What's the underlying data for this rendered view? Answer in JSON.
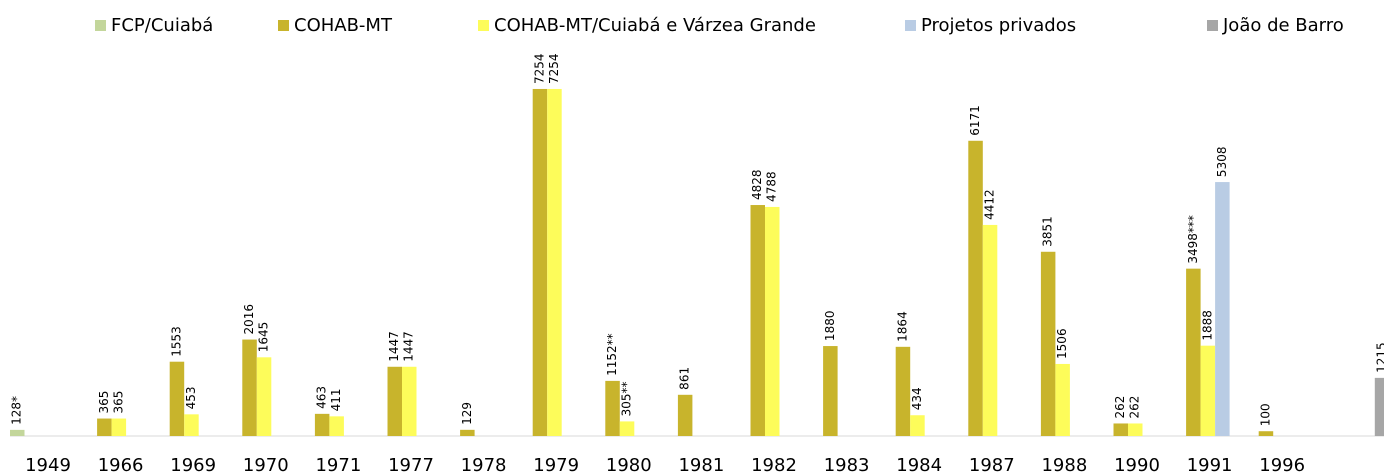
{
  "chart_data": {
    "type": "bar",
    "categories": [
      "1949",
      "1966",
      "1969",
      "1970",
      "1971",
      "1977",
      "1978",
      "1979",
      "1980",
      "1981",
      "1982",
      "1983",
      "1984",
      "1987",
      "1988",
      "1990",
      "1991",
      "1996",
      null
    ],
    "ylim": [
      0,
      8000
    ],
    "series": [
      {
        "name": "FCP/Cuiabá",
        "color": "#c3d69b",
        "values": [
          128,
          null,
          null,
          null,
          null,
          null,
          null,
          null,
          null,
          null,
          null,
          null,
          null,
          null,
          null,
          null,
          null,
          null,
          null
        ],
        "value_labels": [
          "128*",
          null,
          null,
          null,
          null,
          null,
          null,
          null,
          null,
          null,
          null,
          null,
          null,
          null,
          null,
          null,
          null,
          null,
          null
        ]
      },
      {
        "name": "COHAB-MT",
        "color": "#c8b42c",
        "values": [
          null,
          365,
          1553,
          2016,
          463,
          1447,
          129,
          7254,
          1152,
          861,
          4828,
          1880,
          1864,
          6171,
          3851,
          262,
          3498,
          100,
          null
        ],
        "value_labels": [
          null,
          "365",
          "1553",
          "2016",
          "463",
          "1447",
          "129",
          "7254",
          "1152**",
          "861",
          "4828",
          "1880",
          "1864",
          "6171",
          "3851",
          "262",
          "3498***",
          "100",
          null
        ]
      },
      {
        "name": "COHAB-MT/Cuiabá e Várzea Grande",
        "color": "#fdfc5a",
        "values": [
          null,
          365,
          453,
          1645,
          411,
          1447,
          null,
          7254,
          305,
          null,
          4788,
          null,
          434,
          4412,
          1506,
          262,
          1888,
          null,
          null
        ],
        "value_labels": [
          null,
          "365",
          "453",
          "1645",
          "411",
          "1447",
          null,
          "7254",
          "305**",
          null,
          "4788",
          null,
          "434",
          "4412",
          "1506",
          "262",
          "1888",
          null,
          null
        ]
      },
      {
        "name": "Projetos privados",
        "color": "#b9cce4",
        "values": [
          null,
          null,
          null,
          null,
          null,
          null,
          null,
          null,
          null,
          null,
          null,
          null,
          null,
          null,
          null,
          null,
          5308,
          null,
          null
        ]
      },
      {
        "name": "João de Barro",
        "color": "#a6a6a6",
        "values": [
          null,
          null,
          null,
          null,
          null,
          null,
          null,
          null,
          null,
          null,
          null,
          null,
          null,
          null,
          null,
          null,
          null,
          null,
          1215
        ]
      }
    ]
  }
}
